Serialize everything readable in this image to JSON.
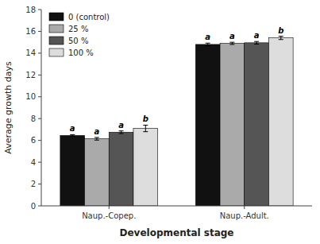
{
  "chart_data": {
    "type": "bar",
    "categories": [
      "Naup.-Copep.",
      "Naup.-Adult."
    ],
    "series": [
      {
        "name": "0 (control)",
        "color": "#111111",
        "values": [
          6.45,
          14.8
        ],
        "errors": [
          0.08,
          0.12
        ],
        "annotations": [
          "a",
          "a"
        ]
      },
      {
        "name": "25 %",
        "color": "#aaaaaa",
        "values": [
          6.15,
          14.9
        ],
        "errors": [
          0.12,
          0.1
        ],
        "annotations": [
          "a",
          "a"
        ]
      },
      {
        "name": "50 %",
        "color": "#555555",
        "values": [
          6.75,
          14.95
        ],
        "errors": [
          0.12,
          0.12
        ],
        "annotations": [
          "a",
          "a"
        ]
      },
      {
        "name": "100 %",
        "color": "#dddddd",
        "values": [
          7.1,
          15.4
        ],
        "errors": [
          0.3,
          0.15
        ],
        "annotations": [
          "b",
          "b"
        ]
      }
    ],
    "xlabel": "Developmental stage",
    "ylabel": "Average growth days",
    "ylim": [
      0,
      18
    ],
    "yticks": [
      0,
      2,
      4,
      6,
      8,
      10,
      12,
      14,
      16,
      18
    ],
    "grid": false,
    "legend": "upper left"
  }
}
